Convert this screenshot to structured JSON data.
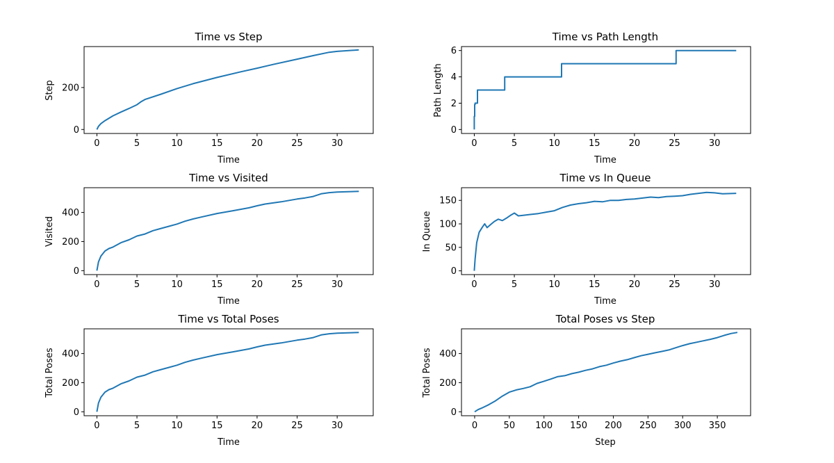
{
  "figure": {
    "line_color": "#1f77b4"
  },
  "chart_data": [
    {
      "type": "line",
      "title": "Time vs Step",
      "xlabel": "Time",
      "ylabel": "Step",
      "xlim": [
        -1.6,
        34.5
      ],
      "ylim": [
        -19,
        395
      ],
      "xticks": [
        0,
        5,
        10,
        15,
        20,
        25,
        30
      ],
      "yticks": [
        0,
        200
      ],
      "series": [
        {
          "x": [
            0,
            0.2,
            0.5,
            1,
            2,
            3,
            4,
            5,
            5.5,
            6,
            8,
            10,
            12,
            15,
            18,
            20,
            22,
            25,
            27,
            29,
            30,
            32.7
          ],
          "y": [
            0,
            15,
            28,
            42,
            65,
            83,
            100,
            118,
            132,
            143,
            168,
            195,
            218,
            248,
            275,
            292,
            310,
            335,
            352,
            368,
            372,
            379
          ]
        }
      ]
    },
    {
      "type": "line",
      "title": "Time vs Path Length",
      "xlabel": "Time",
      "ylabel": "Path Length",
      "xlim": [
        -1.6,
        34.5
      ],
      "ylim": [
        -0.3,
        6.3
      ],
      "xticks": [
        0,
        5,
        10,
        15,
        20,
        25,
        30
      ],
      "yticks": [
        0,
        2,
        4,
        6
      ],
      "series": [
        {
          "x": [
            0,
            0,
            0.05,
            0.05,
            0.1,
            0.1,
            0.4,
            0.4,
            3.8,
            3.8,
            10.9,
            10.9,
            25.2,
            25.2,
            32.7
          ],
          "y": [
            0,
            1,
            1,
            1.9,
            1.9,
            2,
            2,
            3,
            3,
            4,
            4,
            5,
            5,
            6,
            6
          ]
        }
      ]
    },
    {
      "type": "line",
      "title": "Time vs Visited",
      "xlabel": "Time",
      "ylabel": "Visited",
      "xlim": [
        -1.6,
        34.5
      ],
      "ylim": [
        -27,
        570
      ],
      "xticks": [
        0,
        5,
        10,
        15,
        20,
        25,
        30
      ],
      "yticks": [
        0,
        200,
        400
      ],
      "series": [
        {
          "x": [
            0,
            0.2,
            0.5,
            1,
            1.5,
            2,
            3,
            4,
            5,
            6,
            7,
            8,
            9,
            10,
            11,
            12,
            13,
            15,
            17,
            19,
            20,
            21,
            23,
            25,
            26,
            27,
            28,
            29,
            30,
            31,
            32.7
          ],
          "y": [
            0,
            60,
            100,
            135,
            152,
            162,
            192,
            212,
            238,
            252,
            275,
            290,
            305,
            320,
            340,
            355,
            368,
            393,
            412,
            432,
            446,
            458,
            473,
            492,
            500,
            510,
            528,
            536,
            540,
            542,
            545
          ]
        }
      ]
    },
    {
      "type": "line",
      "title": "Time vs In Queue",
      "xlabel": "Time",
      "ylabel": "In Queue",
      "xlim": [
        -1.6,
        34.5
      ],
      "ylim": [
        -8,
        177
      ],
      "xticks": [
        0,
        5,
        10,
        15,
        20,
        25,
        30
      ],
      "yticks": [
        0,
        50,
        100,
        150
      ],
      "series": [
        {
          "x": [
            0,
            0.1,
            0.3,
            0.6,
            1,
            1.3,
            1.6,
            2,
            2.5,
            3,
            3.5,
            4,
            4.5,
            5,
            5.5,
            6,
            7,
            8,
            9,
            10,
            11,
            12,
            13,
            14,
            15,
            16,
            17,
            18,
            19,
            20,
            21,
            22,
            23,
            24,
            25,
            26,
            27,
            28,
            29,
            30,
            31,
            32.7
          ],
          "y": [
            0,
            25,
            60,
            82,
            93,
            100,
            92,
            98,
            105,
            110,
            107,
            112,
            118,
            123,
            117,
            118,
            120,
            122,
            125,
            128,
            135,
            140,
            143,
            145,
            148,
            147,
            150,
            150,
            152,
            153,
            155,
            157,
            156,
            158,
            159,
            160,
            163,
            165,
            167,
            166,
            164,
            165
          ]
        }
      ]
    },
    {
      "type": "line",
      "title": "Time vs Total Poses",
      "xlabel": "Time",
      "ylabel": "Total Poses",
      "xlim": [
        -1.6,
        34.5
      ],
      "ylim": [
        -27,
        570
      ],
      "xticks": [
        0,
        5,
        10,
        15,
        20,
        25,
        30
      ],
      "yticks": [
        0,
        200,
        400
      ],
      "series": [
        {
          "x": [
            0,
            0.2,
            0.5,
            1,
            1.5,
            2,
            3,
            4,
            5,
            6,
            7,
            8,
            9,
            10,
            11,
            12,
            13,
            15,
            17,
            19,
            20,
            21,
            23,
            25,
            26,
            27,
            28,
            29,
            30,
            31,
            32.7
          ],
          "y": [
            0,
            60,
            100,
            135,
            152,
            162,
            192,
            212,
            238,
            252,
            275,
            290,
            305,
            320,
            340,
            355,
            368,
            393,
            412,
            432,
            446,
            458,
            473,
            492,
            500,
            510,
            528,
            536,
            540,
            542,
            545
          ]
        }
      ]
    },
    {
      "type": "line",
      "title": "Total Poses vs Step",
      "xlabel": "Step",
      "ylabel": "Total Poses",
      "xlim": [
        -19,
        398
      ],
      "ylim": [
        -27,
        570
      ],
      "xticks": [
        0,
        50,
        100,
        150,
        200,
        250,
        300,
        350
      ],
      "yticks": [
        0,
        200,
        400
      ],
      "series": [
        {
          "x": [
            0,
            5,
            10,
            20,
            30,
            40,
            50,
            60,
            70,
            80,
            90,
            100,
            110,
            120,
            130,
            140,
            150,
            160,
            170,
            180,
            190,
            200,
            210,
            220,
            230,
            240,
            250,
            260,
            270,
            280,
            290,
            300,
            310,
            320,
            330,
            340,
            350,
            360,
            370,
            379
          ],
          "y": [
            0,
            15,
            25,
            48,
            75,
            108,
            135,
            150,
            160,
            172,
            195,
            210,
            225,
            242,
            248,
            262,
            272,
            285,
            295,
            310,
            320,
            335,
            348,
            358,
            372,
            385,
            395,
            405,
            415,
            425,
            440,
            455,
            468,
            478,
            488,
            498,
            510,
            525,
            538,
            545
          ]
        }
      ]
    }
  ]
}
